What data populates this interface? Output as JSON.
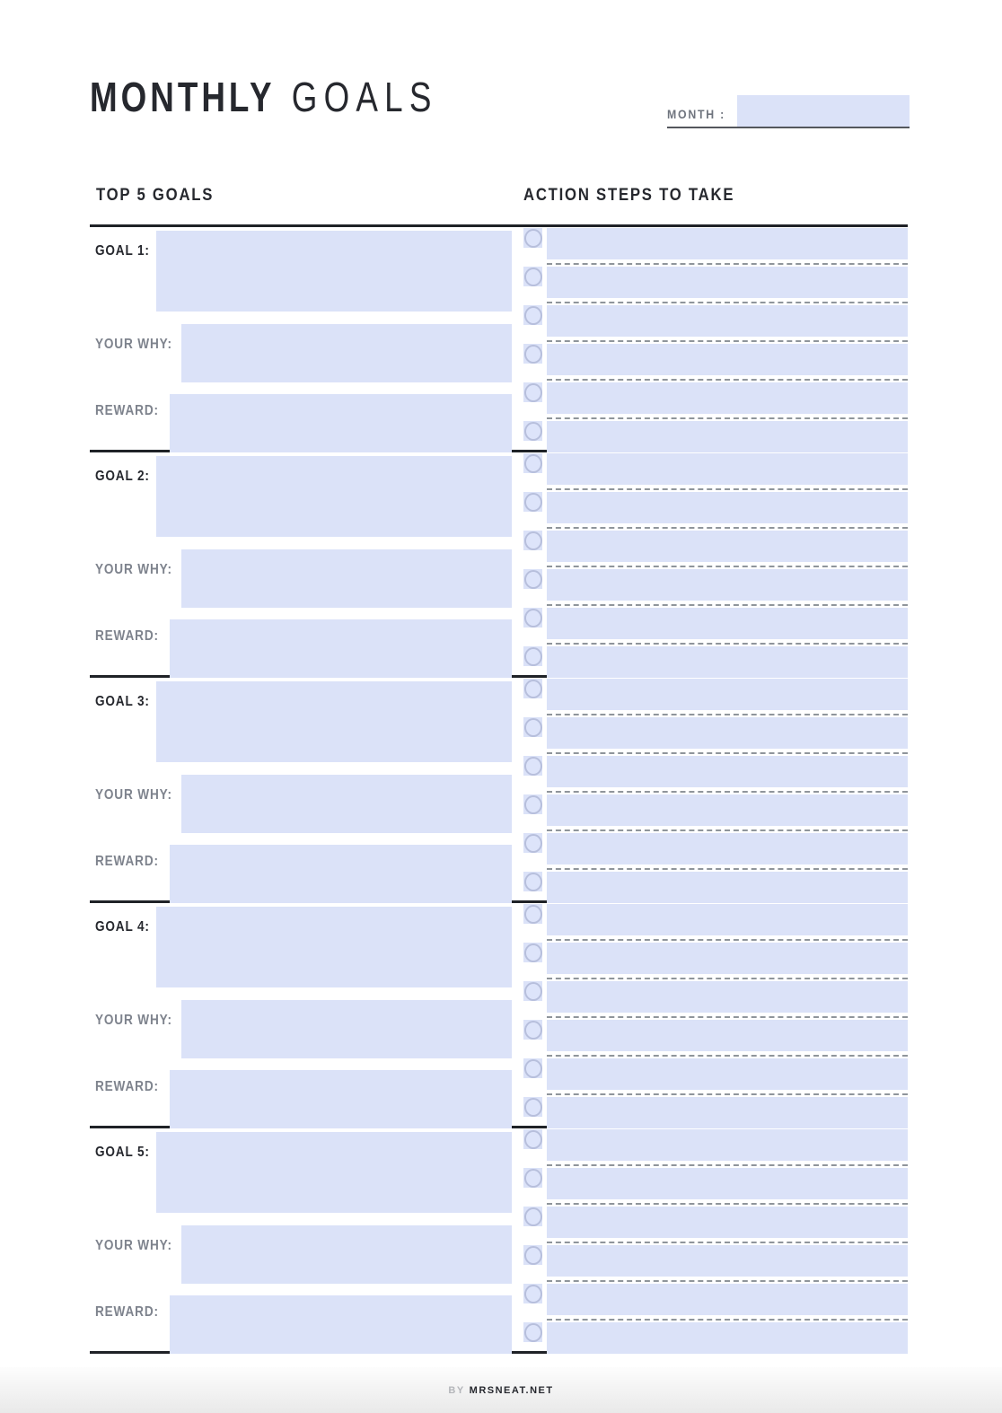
{
  "page": {
    "colors": {
      "field_lavender": "#dbe2f8",
      "checkbox_border": "#b7bfdc",
      "rule_black": "#1f2227",
      "label_gray": "#7e838d",
      "dash_gray": "#8f959b",
      "title_black": "#26282e"
    }
  },
  "header": {
    "title_bold": "MONTHLY",
    "title_light": "GOALS",
    "month_label": "MONTH :",
    "month_value": ""
  },
  "columns": {
    "left": "TOP 5 GOALS",
    "right": "ACTION STEPS TO TAKE"
  },
  "goals": [
    {
      "label": "GOAL 1:",
      "why_label": "YOUR WHY:",
      "reward_label": "REWARD:",
      "goal_value": "",
      "why_value": "",
      "reward_value": "",
      "action_steps": [
        "",
        "",
        "",
        "",
        "",
        ""
      ]
    },
    {
      "label": "GOAL 2:",
      "why_label": "YOUR WHY:",
      "reward_label": "REWARD:",
      "goal_value": "",
      "why_value": "",
      "reward_value": "",
      "action_steps": [
        "",
        "",
        "",
        "",
        "",
        ""
      ]
    },
    {
      "label": "GOAL 3:",
      "why_label": "YOUR WHY:",
      "reward_label": "REWARD:",
      "goal_value": "",
      "why_value": "",
      "reward_value": "",
      "action_steps": [
        "",
        "",
        "",
        "",
        "",
        ""
      ]
    },
    {
      "label": "GOAL 4:",
      "why_label": "YOUR WHY:",
      "reward_label": "REWARD:",
      "goal_value": "",
      "why_value": "",
      "reward_value": "",
      "action_steps": [
        "",
        "",
        "",
        "",
        "",
        ""
      ]
    },
    {
      "label": "GOAL 5:",
      "why_label": "YOUR WHY:",
      "reward_label": "REWARD:",
      "goal_value": "",
      "why_value": "",
      "reward_value": "",
      "action_steps": [
        "",
        "",
        "",
        "",
        "",
        ""
      ]
    }
  ],
  "footer": {
    "by": "BY",
    "site": "MRSNEAT.NET"
  }
}
